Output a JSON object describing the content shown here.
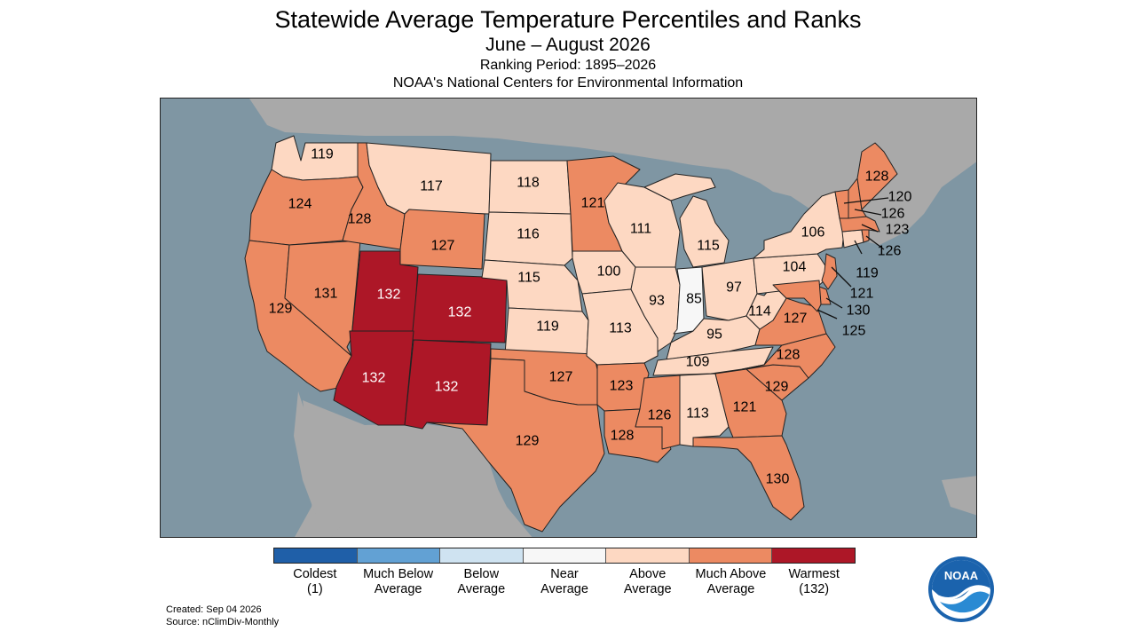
{
  "header": {
    "title": "Statewide Average Temperature Percentiles and Ranks",
    "subtitle": "June – August 2026",
    "ranking_period": "Ranking Period: 1895–2026",
    "source_org": "NOAA's National Centers for Environmental Information"
  },
  "colors": {
    "coldest": "#1f5fa8",
    "much_below": "#62a1d4",
    "below": "#cfe3f1",
    "near": "#f7f7f7",
    "above": "#fdd8c2",
    "much_above": "#ec8a62",
    "warmest": "#ad1727",
    "ocean": "#7f96a3",
    "land_outside": "#a9a9a9"
  },
  "legend": [
    {
      "key": "coldest",
      "line1": "Coldest",
      "line2": "(1)"
    },
    {
      "key": "much_below",
      "line1": "Much Below",
      "line2": "Average"
    },
    {
      "key": "below",
      "line1": "Below",
      "line2": "Average"
    },
    {
      "key": "near",
      "line1": "Near",
      "line2": "Average"
    },
    {
      "key": "above",
      "line1": "Above",
      "line2": "Average"
    },
    {
      "key": "much_above",
      "line1": "Much Above",
      "line2": "Average"
    },
    {
      "key": "warmest",
      "line1": "Warmest",
      "line2": "(132)"
    }
  ],
  "states": {
    "WA": {
      "rank": "119",
      "category": "above"
    },
    "OR": {
      "rank": "124",
      "category": "much_above"
    },
    "CA": {
      "rank": "129",
      "category": "much_above"
    },
    "ID": {
      "rank": "128",
      "category": "much_above"
    },
    "NV": {
      "rank": "131",
      "category": "much_above"
    },
    "MT": {
      "rank": "117",
      "category": "above"
    },
    "WY": {
      "rank": "127",
      "category": "much_above"
    },
    "UT": {
      "rank": "132",
      "category": "warmest"
    },
    "CO": {
      "rank": "132",
      "category": "warmest"
    },
    "AZ": {
      "rank": "132",
      "category": "warmest"
    },
    "NM": {
      "rank": "132",
      "category": "warmest"
    },
    "ND": {
      "rank": "118",
      "category": "above"
    },
    "SD": {
      "rank": "116",
      "category": "above"
    },
    "NE": {
      "rank": "115",
      "category": "above"
    },
    "KS": {
      "rank": "119",
      "category": "above"
    },
    "OK": {
      "rank": "127",
      "category": "much_above"
    },
    "TX": {
      "rank": "129",
      "category": "much_above"
    },
    "MN": {
      "rank": "121",
      "category": "much_above"
    },
    "IA": {
      "rank": "100",
      "category": "above"
    },
    "MO": {
      "rank": "113",
      "category": "above"
    },
    "AR": {
      "rank": "123",
      "category": "much_above"
    },
    "LA": {
      "rank": "128",
      "category": "much_above"
    },
    "WI": {
      "rank": "111",
      "category": "above"
    },
    "IL": {
      "rank": "93",
      "category": "above"
    },
    "MI": {
      "rank": "115",
      "category": "above"
    },
    "IN": {
      "rank": "85",
      "category": "near"
    },
    "OH": {
      "rank": "97",
      "category": "above"
    },
    "KY": {
      "rank": "95",
      "category": "above"
    },
    "TN": {
      "rank": "109",
      "category": "above"
    },
    "MS": {
      "rank": "126",
      "category": "much_above"
    },
    "AL": {
      "rank": "113",
      "category": "above"
    },
    "GA": {
      "rank": "121",
      "category": "much_above"
    },
    "FL": {
      "rank": "130",
      "category": "much_above"
    },
    "SC": {
      "rank": "129",
      "category": "much_above"
    },
    "NC": {
      "rank": "128",
      "category": "much_above"
    },
    "VA": {
      "rank": "127",
      "category": "much_above"
    },
    "WV": {
      "rank": "114",
      "category": "above"
    },
    "PA": {
      "rank": "104",
      "category": "above"
    },
    "NY": {
      "rank": "106",
      "category": "above"
    },
    "ME": {
      "rank": "128",
      "category": "much_above"
    },
    "VT": {
      "rank": "120",
      "category": "much_above"
    },
    "NH": {
      "rank": "126",
      "category": "much_above"
    },
    "MA": {
      "rank": "123",
      "category": "much_above"
    },
    "RI": {
      "rank": "126",
      "category": "much_above"
    },
    "CT": {
      "rank": "119",
      "category": "above"
    },
    "NJ": {
      "rank": "121",
      "category": "much_above"
    },
    "DE": {
      "rank": "130",
      "category": "much_above"
    },
    "MD": {
      "rank": "125",
      "category": "much_above"
    }
  },
  "footer": {
    "created": "Created: Sep 04 2026",
    "source": "Source: nClimDiv-Monthly"
  },
  "logo": {
    "text": "NOAA"
  }
}
